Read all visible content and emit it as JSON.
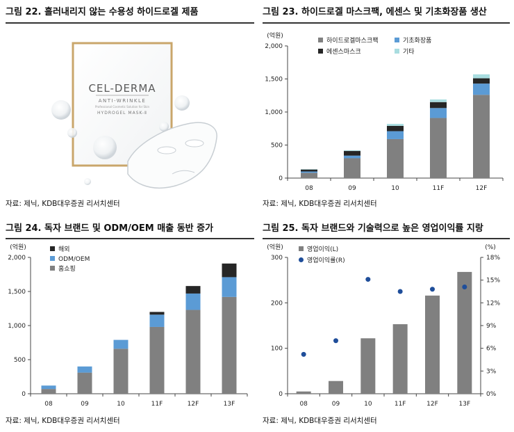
{
  "source_note": "자료: 제닉, KDB대우증권 리서치센터",
  "figure22": {
    "title": "그림 22. 흘러내리지 않는 수용성 하이드로겔 제품",
    "product": {
      "brand": "CEL-DERMA",
      "line1": "ANTI-WRINKLE",
      "line2": "Professional Cosmetic Solution for Skin",
      "line3": "HYDROGEL MASK-Ⅱ"
    }
  },
  "chart_data": [
    {
      "id": "fig23",
      "type": "bar",
      "stacked": true,
      "title": "그림 23. 하이드로겔 마스크팩, 에센스 및 기초화장품 생산",
      "unit_label": "(억원)",
      "categories": [
        "08",
        "09",
        "10",
        "11F",
        "12F"
      ],
      "ylim": [
        0,
        2000
      ],
      "yticks": [
        "0",
        "500",
        "1,000",
        "1,500",
        "2,000"
      ],
      "yticks_values": [
        0,
        500,
        1000,
        1500,
        2000
      ],
      "legend_position": "top",
      "series": [
        {
          "name": "하이드로겔마스크팩",
          "color": "#808080",
          "values": [
            80,
            300,
            590,
            910,
            1260
          ]
        },
        {
          "name": "기초화장품",
          "color": "#5b9bd5",
          "values": [
            20,
            40,
            120,
            150,
            170
          ]
        },
        {
          "name": "에센스마스크",
          "color": "#262626",
          "values": [
            30,
            70,
            80,
            90,
            80
          ]
        },
        {
          "name": "기타",
          "color": "#a9dde0",
          "values": [
            5,
            10,
            30,
            40,
            60
          ]
        }
      ]
    },
    {
      "id": "fig24",
      "type": "bar",
      "stacked": true,
      "title": "그림 24. 독자 브랜드 및 ODM/OEM 매출 동반 증가",
      "unit_label": "(억원)",
      "categories": [
        "08",
        "09",
        "10",
        "11F",
        "12F",
        "13F"
      ],
      "ylim": [
        0,
        2000
      ],
      "yticks": [
        "0",
        "500",
        "1,000",
        "1,500",
        "2,000"
      ],
      "yticks_values": [
        0,
        500,
        1000,
        1500,
        2000
      ],
      "legend_position": "top-left",
      "series": [
        {
          "name": "홈쇼핑",
          "color": "#808080",
          "values": [
            70,
            310,
            660,
            980,
            1230,
            1420
          ]
        },
        {
          "name": "ODM/OEM",
          "color": "#5b9bd5",
          "values": [
            50,
            90,
            130,
            180,
            240,
            290
          ]
        },
        {
          "name": "해외",
          "color": "#262626",
          "values": [
            0,
            0,
            0,
            40,
            110,
            200
          ]
        }
      ]
    },
    {
      "id": "fig25",
      "type": "bar",
      "title": "그림 25. 독자 브랜드와 기술력으로 높은 영업이익률 지랑",
      "unit_label_left": "(억원)",
      "unit_label_right": "(%)",
      "categories": [
        "08",
        "09",
        "10",
        "11F",
        "12F",
        "13F"
      ],
      "ylim": [
        0,
        300
      ],
      "yticks": [
        "0",
        "100",
        "200",
        "300"
      ],
      "yticks_values": [
        0,
        100,
        200,
        300
      ],
      "y2lim": [
        0,
        18
      ],
      "y2ticks": [
        "0%",
        "3%",
        "6%",
        "9%",
        "12%",
        "15%",
        "18%"
      ],
      "y2ticks_values": [
        0,
        3,
        6,
        9,
        12,
        15,
        18
      ],
      "legend_position": "top-left",
      "series": [
        {
          "name": "영업이익(L)",
          "type": "bar",
          "axis": "left",
          "color": "#808080",
          "values": [
            5,
            28,
            122,
            153,
            216,
            268
          ]
        },
        {
          "name": "영업이익률(R)",
          "type": "scatter",
          "axis": "right",
          "color": "#1f4e9a",
          "values": [
            5.2,
            7.0,
            15.1,
            13.5,
            13.8,
            14.1
          ]
        }
      ]
    }
  ]
}
